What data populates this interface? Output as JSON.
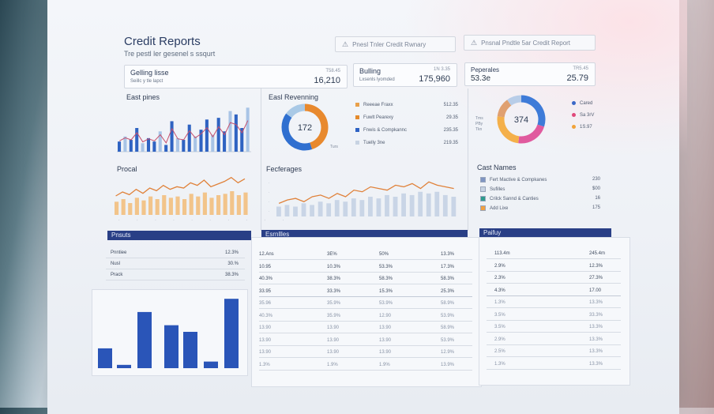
{
  "header": {
    "title": "Credit Reports",
    "subtitle": "Tre pestl ler gesenel s ssqurt",
    "buttons": [
      {
        "label": "Pnesl Tnler Credit Rwnary"
      },
      {
        "label": "Pnsnal Pndtle 5ar Credit Report"
      }
    ]
  },
  "kpis": [
    {
      "label": "Gelling lisse",
      "sub": "Seillc y tle lapct",
      "subvalue": "T58.45",
      "value": "16,210"
    },
    {
      "label": "Bulling",
      "sub": "Lxsenls lyomded",
      "subvalue": "1N 3.35",
      "value": "175,960"
    },
    {
      "label": "Peperales",
      "sub": "",
      "subvalue": "TR5.45",
      "value": "53.3e",
      "value2": "25.79"
    }
  ],
  "sections": {
    "east_pines": "East pines",
    "procal": "Procal",
    "east_revenning": "Easl Revenning",
    "fecterages": "Fecferages",
    "cast_names": "Cast Names"
  },
  "donut1": {
    "center": "172",
    "note": "Turs",
    "segments": [
      {
        "color": "#e8892e",
        "value": 45
      },
      {
        "color": "#2f6fd0",
        "value": 40
      },
      {
        "color": "#a9c9e6",
        "value": 15
      }
    ]
  },
  "donut1_legend": [
    {
      "label": "Reeeae Fraxx",
      "value": "512.35",
      "color": "#e8a04a"
    },
    {
      "label": "Fuwlt Pearexy",
      "value": "29.35",
      "color": "#e58a2c"
    },
    {
      "label": "Fnwis & Compkannc",
      "value": "235.35",
      "color": "#2f62c4"
    },
    {
      "label": "Tuelly 3ne",
      "value": "219.35",
      "color": "#c7d3e2"
    }
  ],
  "donut2": {
    "center": "374",
    "segments": [
      {
        "color": "#3e7bd8",
        "value": 30
      },
      {
        "color": "#e05a9e",
        "value": 22
      },
      {
        "color": "#f4b04a",
        "value": 25
      },
      {
        "color": "#e0a070",
        "value": 13
      },
      {
        "color": "#b8cde8",
        "value": 10
      }
    ]
  },
  "donut2_left": "Tms\nPBy\nTkn",
  "donut2_legend": [
    {
      "label": "Cared",
      "color": "#3a68c7"
    },
    {
      "label": "Sa 3rV",
      "color": "#e0487a"
    },
    {
      "label": "1S.97",
      "color": "#f1a23a"
    }
  ],
  "cast_names": [
    {
      "label": "Fert Mactive & Compkanes",
      "value": "230",
      "color": "#7f95c2"
    },
    {
      "label": "Sufilles",
      "value": "$00",
      "color": "#c7d3e2"
    },
    {
      "label": "Crilck Sannd & Canties",
      "value": "16",
      "color": "#2f9b8e"
    },
    {
      "label": "Add Lixe",
      "value": "175",
      "color": "#f0a042"
    }
  ],
  "east_bars": [
    6,
    9,
    7,
    14,
    5,
    8,
    6,
    12,
    4,
    18,
    8,
    7,
    16,
    9,
    13,
    19,
    10,
    20,
    12,
    24,
    22,
    14,
    26
  ],
  "procal_line": [
    12,
    15,
    13,
    17,
    14,
    18,
    16,
    20,
    17,
    19,
    18,
    22,
    20,
    24,
    19,
    21,
    23,
    26,
    22,
    25
  ],
  "procal_bars": [
    10,
    12,
    9,
    13,
    11,
    14,
    12,
    15,
    13,
    14,
    12,
    16,
    14,
    17,
    13,
    15,
    16,
    18,
    15,
    17
  ],
  "fect_line": [
    8,
    10,
    11,
    9,
    12,
    13,
    11,
    14,
    12,
    16,
    15,
    18,
    17,
    16,
    19,
    18,
    20,
    17,
    21,
    19,
    18,
    17
  ],
  "fect_bars": [
    6,
    7,
    6,
    8,
    7,
    9,
    8,
    10,
    9,
    11,
    10,
    12,
    11,
    13,
    12,
    14,
    13,
    15,
    14,
    15,
    13,
    12
  ],
  "bottom_bars": [
    6,
    1,
    17,
    13,
    11,
    2,
    21
  ],
  "panels": {
    "left": {
      "band": "Pnsuts",
      "rows": [
        [
          "Pnntiee",
          "12.3%"
        ],
        [
          "Nusl",
          "30.%"
        ],
        [
          "Prack",
          "38.3%"
        ]
      ]
    },
    "mid": {
      "band": "Esrnllles",
      "rows": [
        [
          "12.Ans",
          "3E%",
          "50%",
          "13.3%"
        ],
        [
          "10.95",
          "10.3%",
          "53.3%",
          "17.3%"
        ],
        [
          "40.3%",
          "38.3%",
          "58.3%",
          "58.3%"
        ],
        [
          "33.95",
          "33.3%",
          "15.3%",
          "25.3%"
        ],
        [
          "35.96",
          "35.9%",
          "53.9%",
          "58.9%"
        ],
        [
          "40.3%",
          "35.9%",
          "12.90",
          "53.9%"
        ],
        [
          "13.90",
          "13.90",
          "13.90",
          "58.9%"
        ],
        [
          "13.90",
          "13.90",
          "13.90",
          "53.9%"
        ],
        [
          "13.90",
          "13.90",
          "13.90",
          "12.9%"
        ],
        [
          "1.3%",
          "1.9%",
          "1.9%",
          "13.9%"
        ]
      ]
    },
    "right": {
      "band": "Paifuy",
      "rows": [
        [
          "113.4m",
          "245.4m"
        ],
        [
          "2.9%",
          "12.3%"
        ],
        [
          "2.3%",
          "27.3%"
        ],
        [
          "4.3%",
          "17.00"
        ],
        [
          "1.3%",
          "13.3%"
        ],
        [
          "3.5%",
          "33.3%"
        ],
        [
          "3.5%",
          "13.3%"
        ],
        [
          "2.9%",
          "13.3%"
        ],
        [
          "2.5%",
          "13.3%"
        ],
        [
          "1.3%",
          "13.3%"
        ]
      ]
    }
  }
}
